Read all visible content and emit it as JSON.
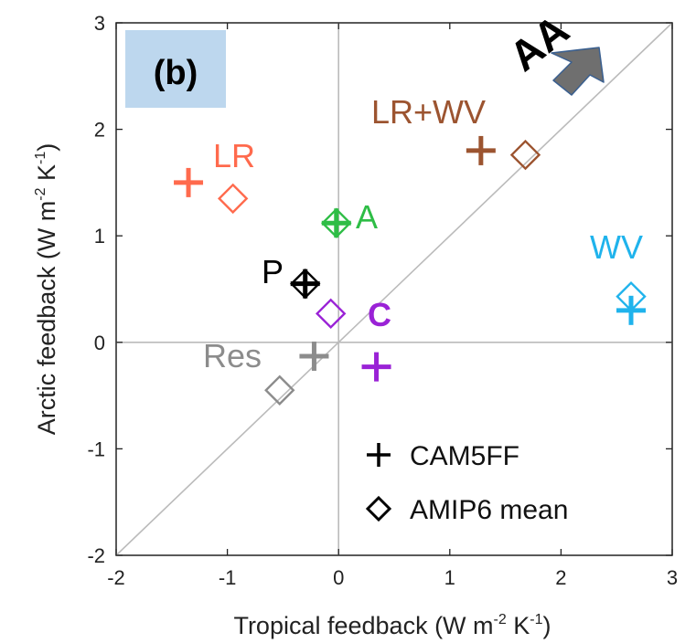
{
  "chart_data": {
    "type": "scatter",
    "panel_label": "(b)",
    "xlabel": "Tropical feedback (W m-2 K-1)",
    "ylabel": "Arctic feedback (W m-2 K-1)",
    "xlim": [
      -2,
      3
    ],
    "ylim": [
      -2,
      3
    ],
    "xticks": [
      "-2",
      "-1",
      "0",
      "1",
      "2",
      "3"
    ],
    "yticks": [
      "-2",
      "-1",
      "0",
      "1",
      "2",
      "3"
    ],
    "reference_lines": [
      "x=0",
      "y=0",
      "y=x"
    ],
    "annotation": "AA",
    "legend": {
      "placement": "bottom-right",
      "entries": [
        {
          "marker": "plus",
          "label": "CAM5FF"
        },
        {
          "marker": "diamond",
          "label": "AMIP6 mean"
        }
      ]
    },
    "groups": [
      {
        "name": "LR",
        "color": "#ff6a4d",
        "cam5ff": [
          -1.35,
          1.5
        ],
        "amip6": [
          -0.95,
          1.35
        ]
      },
      {
        "name": "LR+WV",
        "color": "#9c5430",
        "cam5ff": [
          1.28,
          1.8
        ],
        "amip6": [
          1.68,
          1.76
        ]
      },
      {
        "name": "A",
        "color": "#2ebd46",
        "cam5ff": [
          -0.02,
          1.12
        ],
        "amip6": [
          -0.02,
          1.12
        ]
      },
      {
        "name": "P",
        "color": "#000000",
        "cam5ff": [
          -0.3,
          0.55
        ],
        "amip6": [
          -0.3,
          0.55
        ]
      },
      {
        "name": "C",
        "color": "#9a22d6",
        "cam5ff": [
          0.34,
          -0.23
        ],
        "amip6": [
          -0.07,
          0.27
        ]
      },
      {
        "name": "WV",
        "color": "#1fb3ec",
        "cam5ff": [
          2.63,
          0.3
        ],
        "amip6": [
          2.63,
          0.43
        ]
      },
      {
        "name": "Res",
        "color": "#8c8c8c",
        "cam5ff": [
          -0.22,
          -0.13
        ],
        "amip6": [
          -0.53,
          -0.45
        ]
      }
    ]
  }
}
